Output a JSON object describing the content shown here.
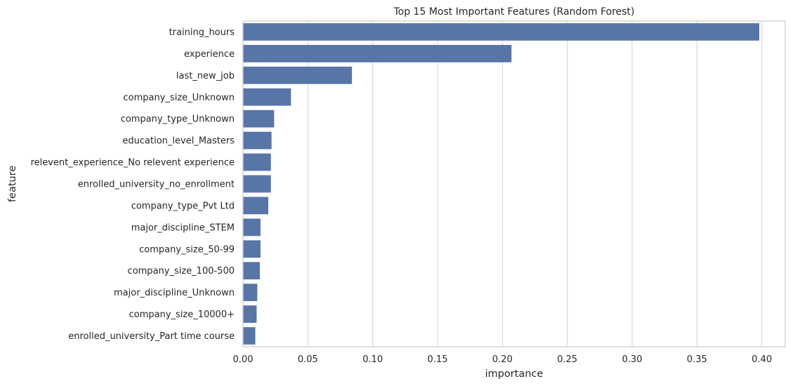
{
  "chart_data": {
    "type": "bar",
    "orientation": "horizontal",
    "title": "Top 15 Most Important Features (Random Forest)",
    "xlabel": "importance",
    "ylabel": "feature",
    "categories": [
      "training_hours",
      "experience",
      "last_new_job",
      "company_size_Unknown",
      "company_type_Unknown",
      "education_level_Masters",
      "relevent_experience_No relevent experience",
      "enrolled_university_no_enrollment",
      "company_type_Pvt Ltd",
      "major_discipline_STEM",
      "company_size_50-99",
      "company_size_100-500",
      "major_discipline_Unknown",
      "company_size_10000+",
      "enrolled_university_Part time course"
    ],
    "values": [
      0.398,
      0.207,
      0.084,
      0.037,
      0.024,
      0.022,
      0.0215,
      0.0215,
      0.0195,
      0.0135,
      0.0135,
      0.013,
      0.011,
      0.0105,
      0.0095
    ],
    "xlim": [
      0,
      0.418
    ],
    "xticks": [
      0.0,
      0.05,
      0.1,
      0.15,
      0.2,
      0.25,
      0.3,
      0.35,
      0.4
    ],
    "xtick_labels": [
      "0.00",
      "0.05",
      "0.10",
      "0.15",
      "0.20",
      "0.25",
      "0.30",
      "0.35",
      "0.40"
    ],
    "bar_color": "#5875a8",
    "grid": true
  }
}
